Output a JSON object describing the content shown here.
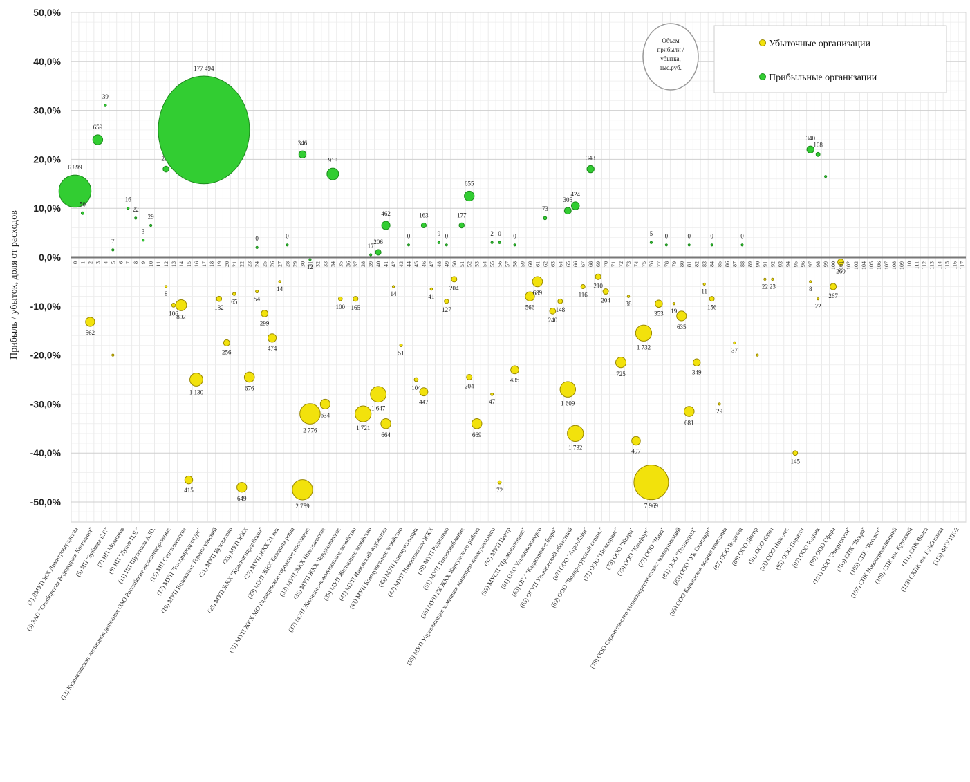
{
  "chart_data": {
    "type": "scatter",
    "ylabel": "Прибыль / убыток, доля от расходов",
    "ylim": [
      -50,
      50
    ],
    "yticks": [
      "-50,0%",
      "-40,0%",
      "-30,0%",
      "-20,0%",
      "-10,0%",
      "0,0%",
      "10,0%",
      "20,0%",
      "30,0%",
      "40,0%",
      "50,0%"
    ],
    "x_index_labels": [
      "0",
      "1",
      "2",
      "3",
      "4",
      "5",
      "6",
      "7",
      "8",
      "9",
      "10",
      "11",
      "12",
      "13",
      "14",
      "15",
      "16",
      "17",
      "18",
      "19",
      "20",
      "21",
      "22",
      "23",
      "24",
      "25",
      "26",
      "27",
      "28",
      "29",
      "30",
      "31",
      "32",
      "33",
      "34",
      "35",
      "36",
      "37",
      "38",
      "39",
      "40",
      "41",
      "42",
      "43",
      "44",
      "45",
      "46",
      "47",
      "48",
      "49",
      "50",
      "51",
      "52",
      "53",
      "54",
      "55",
      "56",
      "57",
      "58",
      "59",
      "60",
      "61",
      "62",
      "63",
      "64",
      "65",
      "66",
      "67",
      "68",
      "69",
      "70",
      "71",
      "72",
      "73",
      "74",
      "75",
      "76",
      "77",
      "78",
      "79",
      "80",
      "81",
      "82",
      "83",
      "84",
      "85",
      "86",
      "87",
      "88",
      "89",
      "90",
      "91",
      "92",
      "93",
      "94",
      "95",
      "96",
      "97",
      "98",
      "99",
      "100",
      "101",
      "102",
      "103",
      "104",
      "105",
      "106",
      "107",
      "108",
      "109",
      "110",
      "111",
      "112",
      "113",
      "114",
      "115",
      "116",
      "117"
    ],
    "categories": [
      "(1) ДМУП ЖХ Димитровградская",
      "(3) ЗАО \"Симбирская Водородная Компания\"",
      "(5) ИП \"Зуйкова Е.Г.\"",
      "(7) ИП Мохначев",
      "(9) ИП \"Лунев П.Е.\"",
      "(11) ИП Шутенков А.Ю.",
      "(13) Кузоватовская жилищная дирекция ОАО Российские железнодорожные",
      "(15) МП Сенгилеевское",
      "(17) МУП \"Росприродресурс\"",
      "(19) МУП Водоканал Тереньгульский",
      "(21) МУП Кузоватово",
      "(23) МУП ЖКХ",
      "(25) МУП ЖКХ \"Красногвардейское\"",
      "(27) МУП ЖКХ 21 век",
      "(29) МУП ЖКХ Базарная роща",
      "(31) МУП ЖКХ МО Радищевское городское поселение",
      "(33) МУП ЖКХ Николаевское",
      "(35) МУП ЖКХ Чердаклинское",
      "(37) МУП Жилищно-коммунальное хозяйство",
      "(39) МУП Жилищное хозяйство",
      "(41) МУП Инзенский водоканал",
      "(43) МУП Коммунальное хозяйство",
      "(45) МУП Коммунальщик",
      "(47) МУП Новоспасское ЖКХ",
      "(49) МУП Радищево",
      "(51) МУП Теплоснабжение",
      "(53) МУП РК ЖКХ Карсунского района",
      "(55) МУП Управляющая компания жилищно-коммунального",
      "(57) МУП Центр",
      "(59) МУСП \"Промышленное\"",
      "(61) ОАО Ульяновскэнерго",
      "(63) ОГУ \"Кадастровое бюро\"",
      "(65) ОГУП Ульяновский областной",
      "(67) ООО \"Агро-Лайн\"",
      "(69) ООО \"Водоресурсный сервис\"",
      "(71) ООО \"Инжсервис\"",
      "(73) ООО \"Кварц\"",
      "(75) ООО \"Комфорт\"",
      "(77) ООО \"Нива\"",
      "(79) ООО Строительство теплоэнергетических коммуникаций",
      "(81) ООО \"Теплоград\"",
      "(83) ООО \"УК Стандарт\"",
      "(85) ООО Барышская водная компания",
      "(87) ООО Водоход",
      "(89) ООО Днепр",
      "(91) ООО Ключ",
      "(93) ООО Ниж-лес",
      "(95) ООО Паритет",
      "(97) ООО Родник",
      "(99) ООО Сфера",
      "(101) ООО \"Энергосети\"",
      "(103) СПК \"Искра\"",
      "(105) СПК \"Рассвет\"",
      "(107) СПК Новочеремшанский",
      "(109) СПК им. Крупской",
      "(111) СПК Волга",
      "(113) СХПК им. Куйбышева",
      "(115) ФГУ ИК-2"
    ],
    "series": [
      {
        "name": "Убыточные организации",
        "color": "#f2e20c",
        "points": [
          {
            "x": 2,
            "y": -13.2,
            "label": "562"
          },
          {
            "x": 5,
            "y": -20,
            "label": ""
          },
          {
            "x": 12,
            "y": -6,
            "label": "8"
          },
          {
            "x": 13,
            "y": -9.8,
            "label": "106"
          },
          {
            "x": 14,
            "y": -9.8,
            "label": "802"
          },
          {
            "x": 15,
            "y": -45.5,
            "label": "415"
          },
          {
            "x": 16,
            "y": -25,
            "label": "1 130"
          },
          {
            "x": 19,
            "y": -8.5,
            "label": "182"
          },
          {
            "x": 20,
            "y": -17.5,
            "label": "256"
          },
          {
            "x": 21,
            "y": -7.5,
            "label": "65"
          },
          {
            "x": 22,
            "y": -47,
            "label": "649"
          },
          {
            "x": 23,
            "y": -24.5,
            "label": "676"
          },
          {
            "x": 24,
            "y": -7,
            "label": "54"
          },
          {
            "x": 25,
            "y": -11.5,
            "label": "299"
          },
          {
            "x": 26,
            "y": -16.5,
            "label": "474"
          },
          {
            "x": 27,
            "y": -5,
            "label": "14"
          },
          {
            "x": 30,
            "y": -47.5,
            "label": "2 759"
          },
          {
            "x": 31,
            "y": -32,
            "label": "2 776"
          },
          {
            "x": 33,
            "y": -30,
            "label": "634"
          },
          {
            "x": 35,
            "y": -8.5,
            "label": "100"
          },
          {
            "x": 37,
            "y": -8.5,
            "label": "165"
          },
          {
            "x": 38,
            "y": -32,
            "label": "1 721"
          },
          {
            "x": 40,
            "y": -28,
            "label": "1 647"
          },
          {
            "x": 41,
            "y": -34,
            "label": "664"
          },
          {
            "x": 42,
            "y": -6,
            "label": "14"
          },
          {
            "x": 43,
            "y": -18,
            "label": "51"
          },
          {
            "x": 45,
            "y": -25,
            "label": "104"
          },
          {
            "x": 46,
            "y": -27.5,
            "label": "447"
          },
          {
            "x": 47,
            "y": -6.5,
            "label": "41"
          },
          {
            "x": 49,
            "y": -9,
            "label": "127"
          },
          {
            "x": 50,
            "y": -4.5,
            "label": "204"
          },
          {
            "x": 52,
            "y": -24.5,
            "label": "204"
          },
          {
            "x": 53,
            "y": -34,
            "label": "669"
          },
          {
            "x": 55,
            "y": -28,
            "label": "47"
          },
          {
            "x": 56,
            "y": -46,
            "label": "72"
          },
          {
            "x": 58,
            "y": -23,
            "label": "435"
          },
          {
            "x": 60,
            "y": -8,
            "label": "566"
          },
          {
            "x": 61,
            "y": -5,
            "label": "689"
          },
          {
            "x": 63,
            "y": -11,
            "label": "240"
          },
          {
            "x": 64,
            "y": -9,
            "label": "148"
          },
          {
            "x": 65,
            "y": -27,
            "label": "1 609"
          },
          {
            "x": 66,
            "y": -36,
            "label": "1 732"
          },
          {
            "x": 67,
            "y": -6,
            "label": "116"
          },
          {
            "x": 69,
            "y": -4,
            "label": "210"
          },
          {
            "x": 70,
            "y": -7,
            "label": "204"
          },
          {
            "x": 72,
            "y": -21.5,
            "label": "725"
          },
          {
            "x": 73,
            "y": -8,
            "label": "38"
          },
          {
            "x": 74,
            "y": -37.5,
            "label": "497"
          },
          {
            "x": 75,
            "y": -15.5,
            "label": "1 732"
          },
          {
            "x": 76,
            "y": -46,
            "label": "7 969"
          },
          {
            "x": 77,
            "y": -9.5,
            "label": "353"
          },
          {
            "x": 79,
            "y": -9.5,
            "label": "19"
          },
          {
            "x": 80,
            "y": -12,
            "label": "635"
          },
          {
            "x": 81,
            "y": -31.5,
            "label": "681"
          },
          {
            "x": 82,
            "y": -21.5,
            "label": "349"
          },
          {
            "x": 83,
            "y": -5.5,
            "label": "11"
          },
          {
            "x": 84,
            "y": -8.5,
            "label": "156"
          },
          {
            "x": 85,
            "y": -30,
            "label": "29"
          },
          {
            "x": 87,
            "y": -17.5,
            "label": "37"
          },
          {
            "x": 90,
            "y": -20,
            "label": ""
          },
          {
            "x": 91,
            "y": -4.5,
            "label": "22"
          },
          {
            "x": 92,
            "y": -4.5,
            "label": "23"
          },
          {
            "x": 95,
            "y": -40,
            "label": "145"
          },
          {
            "x": 97,
            "y": -5,
            "label": "8"
          },
          {
            "x": 98,
            "y": -8.5,
            "label": "22"
          },
          {
            "x": 100,
            "y": -6,
            "label": "267"
          },
          {
            "x": 101,
            "y": -1,
            "label": "260"
          }
        ]
      },
      {
        "name": "Прибыльные организации",
        "color": "#32cd32",
        "points": [
          {
            "x": 0,
            "y": 13.5,
            "label": "6 899"
          },
          {
            "x": 1,
            "y": 9,
            "label": "50"
          },
          {
            "x": 3,
            "y": 24,
            "label": "659"
          },
          {
            "x": 4,
            "y": 31,
            "label": "39"
          },
          {
            "x": 5,
            "y": 1.5,
            "label": "7"
          },
          {
            "x": 7,
            "y": 10,
            "label": "16"
          },
          {
            "x": 8,
            "y": 8,
            "label": "22"
          },
          {
            "x": 9,
            "y": 3.5,
            "label": "3"
          },
          {
            "x": 10,
            "y": 6.5,
            "label": "29"
          },
          {
            "x": 12,
            "y": 18,
            "label": "232"
          },
          {
            "x": 17,
            "y": 26,
            "label": "177 494"
          },
          {
            "x": 24,
            "y": 2,
            "label": "0"
          },
          {
            "x": 28,
            "y": 2.5,
            "label": "0"
          },
          {
            "x": 30,
            "y": 21,
            "label": "346"
          },
          {
            "x": 31,
            "y": -0.5,
            "label": "12"
          },
          {
            "x": 34,
            "y": 17,
            "label": "918"
          },
          {
            "x": 39,
            "y": 0.5,
            "label": "17"
          },
          {
            "x": 40,
            "y": 1,
            "label": "206"
          },
          {
            "x": 41,
            "y": 6.5,
            "label": "462"
          },
          {
            "x": 44,
            "y": 2.5,
            "label": "0"
          },
          {
            "x": 46,
            "y": 6.5,
            "label": "163"
          },
          {
            "x": 48,
            "y": 3,
            "label": "9"
          },
          {
            "x": 49,
            "y": 2.5,
            "label": "0"
          },
          {
            "x": 51,
            "y": 6.5,
            "label": "177"
          },
          {
            "x": 52,
            "y": 12.5,
            "label": "655"
          },
          {
            "x": 55,
            "y": 3,
            "label": "2"
          },
          {
            "x": 56,
            "y": 3,
            "label": "0"
          },
          {
            "x": 58,
            "y": 2.5,
            "label": "0"
          },
          {
            "x": 62,
            "y": 8,
            "label": "73"
          },
          {
            "x": 65,
            "y": 9.5,
            "label": "305"
          },
          {
            "x": 66,
            "y": 10.5,
            "label": "424"
          },
          {
            "x": 68,
            "y": 18,
            "label": "348"
          },
          {
            "x": 76,
            "y": 3,
            "label": "5"
          },
          {
            "x": 78,
            "y": 2.5,
            "label": "0"
          },
          {
            "x": 81,
            "y": 2.5,
            "label": "0"
          },
          {
            "x": 84,
            "y": 2.5,
            "label": "0"
          },
          {
            "x": 88,
            "y": 2.5,
            "label": "0"
          },
          {
            "x": 97,
            "y": 22,
            "label": "340"
          },
          {
            "x": 98,
            "y": 21,
            "label": "108"
          },
          {
            "x": 99,
            "y": 16.5,
            "label": ""
          }
        ]
      }
    ],
    "bubble_note": "Объем прибыли / убытка, тыс.руб.",
    "legend": [
      "Убыточные организации",
      "Прибыльные организации"
    ],
    "legend_position": "top-right",
    "grid": true
  }
}
